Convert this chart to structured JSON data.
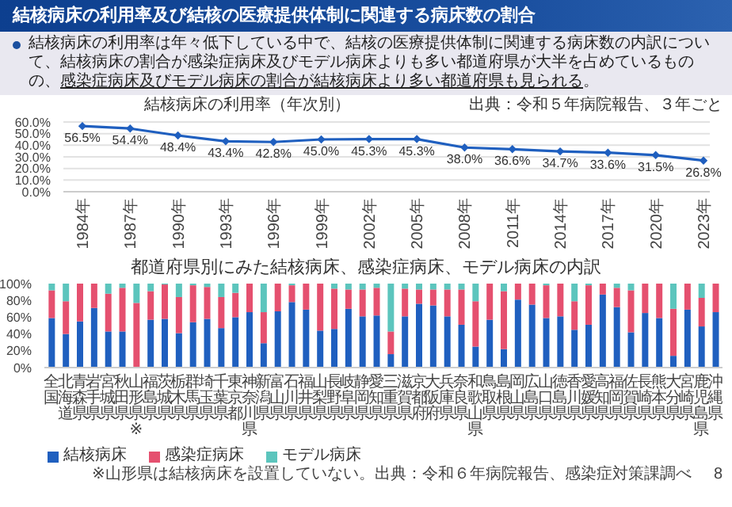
{
  "chart_data": [
    {
      "type": "line",
      "title": "結核病床の利用率（年次別）",
      "annotations": [
        "結核病床の利用率及び結核の医療提供体制に関連する病床数の割合",
        "結核病床の利用率は年々低下している中で、結核の医療提供体制に関連する病床数の内訳について、結核病床の割合が感染症病床及びモデル病床よりも多い都道府県が大半を占めているものの、",
        "感染症病床及びモデル病床の割合が結核病床より多い都道府県も見られる",
        "。",
        "出典：令和５年病院報告、３年ごと"
      ],
      "categories": [
        "1984年",
        "1987年",
        "1990年",
        "1993年",
        "1996年",
        "1999年",
        "2002年",
        "2005年",
        "2008年",
        "2011年",
        "2014年",
        "2017年",
        "2020年",
        "2023年"
      ],
      "series": [
        {
          "color": "#1f5fbf",
          "values": [
            56.5,
            54.4,
            48.4,
            43.4,
            42.8,
            45.0,
            45.3,
            45.3,
            38.0,
            36.6,
            34.7,
            33.6,
            31.5,
            26.8
          ],
          "value_labels": [
            "56.5%",
            "54.4%",
            "48.4%",
            "43.4%",
            "42.8%",
            "45.0%",
            "45.3%",
            "45.3%",
            "38.0%",
            "36.6%",
            "34.7%",
            "33.6%",
            "31.5%",
            "26.8%"
          ]
        }
      ],
      "ylim": [
        0,
        60
      ],
      "yticks": [
        {
          "value": 0,
          "label": "0.0%"
        },
        {
          "value": 10,
          "label": "10.0%"
        },
        {
          "value": 20,
          "label": "20.0%"
        },
        {
          "value": 30,
          "label": "30.0%"
        },
        {
          "value": 40,
          "label": "40.0%"
        },
        {
          "value": 50,
          "label": "50.0%"
        },
        {
          "value": 60,
          "label": "60.0%"
        }
      ],
      "grid": "y",
      "marker": "diamond",
      "legend": false
    },
    {
      "type": "bar",
      "stacked": true,
      "title": "都道府県別にみた結核病床、感染症病床、モデル病床の内訳",
      "annotations": [
        "※山形県は結核病床を設置していない。出典：令和６年病院報告、感染症対策課調べ",
        "8"
      ],
      "categories": [
        "全国",
        "北海道",
        "青森県",
        "岩手県",
        "宮城県",
        "秋田県",
        "山形県※",
        "福島県",
        "茨城県",
        "栃木県",
        "群馬県",
        "埼玉県",
        "千葉県",
        "東京都",
        "神奈川県",
        "新潟県",
        "富山県",
        "石川県",
        "福井県",
        "山梨県",
        "長野県",
        "岐阜県",
        "静岡県",
        "愛知県",
        "三重県",
        "滋賀県",
        "京都府",
        "大阪府",
        "兵庫県",
        "奈良県",
        "和歌山県",
        "鳥取県",
        "島根県",
        "岡山県",
        "広島県",
        "山口県",
        "徳島県",
        "香川県",
        "愛媛県",
        "高知県",
        "福岡県",
        "佐賀県",
        "長崎県",
        "熊本県",
        "大分県",
        "宮崎県",
        "鹿児島県",
        "沖縄県"
      ],
      "series": [
        {
          "name": "結核病床",
          "color": "#1f5fbf",
          "values": [
            59,
            40,
            55,
            71,
            43,
            43,
            0,
            57,
            58,
            41,
            54,
            58,
            47,
            60,
            66,
            29,
            67,
            78,
            69,
            44,
            46,
            70,
            61,
            62,
            16,
            61,
            76,
            74,
            61,
            51,
            25,
            57,
            22,
            81,
            75,
            59,
            61,
            45,
            51,
            87,
            72,
            42,
            65,
            59,
            14,
            69,
            49,
            66
          ]
        },
        {
          "name": "感染症病床",
          "color": "#e5506f",
          "values": [
            33,
            39,
            45,
            29,
            45,
            52,
            77,
            34,
            41,
            43,
            44,
            38,
            37,
            29,
            34,
            37,
            33,
            20,
            31,
            56,
            48,
            23,
            32,
            33,
            27,
            33,
            17,
            19,
            32,
            42,
            54,
            43,
            69,
            19,
            25,
            39,
            39,
            34,
            47,
            13,
            23,
            50,
            35,
            41,
            56,
            31,
            34,
            34
          ]
        },
        {
          "name": "モデル病床",
          "color": "#5cc5bd",
          "values": [
            8,
            21,
            0,
            0,
            12,
            5,
            23,
            9,
            1,
            16,
            2,
            4,
            16,
            11,
            0,
            34,
            0,
            2,
            0,
            0,
            6,
            7,
            7,
            5,
            57,
            6,
            7,
            7,
            7,
            7,
            21,
            0,
            9,
            0,
            0,
            2,
            0,
            21,
            2,
            0,
            5,
            8,
            0,
            0,
            30,
            0,
            17,
            0
          ]
        }
      ],
      "ylim": [
        0,
        100
      ],
      "yticks": [
        {
          "value": 0,
          "label": "0%"
        },
        {
          "value": 20,
          "label": "20%"
        },
        {
          "value": 40,
          "label": "40%"
        },
        {
          "value": 60,
          "label": "60%"
        },
        {
          "value": 80,
          "label": "80%"
        },
        {
          "value": 100,
          "label": "100%"
        }
      ],
      "legend": "bottom left"
    }
  ]
}
